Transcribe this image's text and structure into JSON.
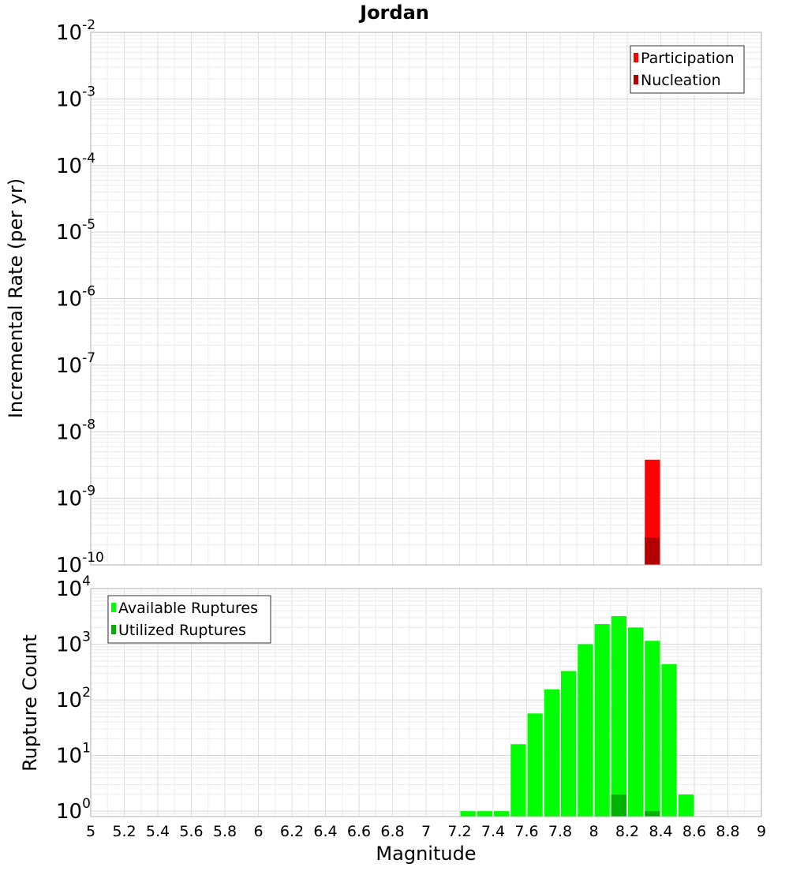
{
  "chart_data": [
    {
      "type": "bar",
      "title": "Jordan",
      "ylabel": "Incremental Rate (per yr)",
      "y_scale": "log",
      "ylim": [
        1e-10,
        0.01
      ],
      "xlim": [
        5,
        9
      ],
      "y_tick_exponents": [
        "-2",
        "-3",
        "-4",
        "-5",
        "-6",
        "-7",
        "-8",
        "-9",
        "-10"
      ],
      "bin_width": 0.1,
      "legend": {
        "position": "top-right",
        "entries": [
          "Participation",
          "Nucleation"
        ]
      },
      "colors": {
        "Participation": "#ff0000",
        "Nucleation": "#b20000"
      },
      "grid": true,
      "series": [
        {
          "name": "Participation",
          "x": [
            8.35
          ],
          "values": [
            3.8e-09
          ]
        },
        {
          "name": "Nucleation",
          "x": [
            8.35
          ],
          "values": [
            2.6e-10
          ]
        }
      ]
    },
    {
      "type": "bar",
      "ylabel": "Rupture Count",
      "xlabel": "Magnitude",
      "y_scale": "log",
      "ylim": [
        0.8,
        10000
      ],
      "xlim": [
        5,
        9
      ],
      "y_tick_exponents": [
        "4",
        "3",
        "2",
        "1",
        "0"
      ],
      "x_tick_labels": [
        "5",
        "5.2",
        "5.4",
        "5.6",
        "5.8",
        "6",
        "6.2",
        "6.4",
        "6.6",
        "6.8",
        "7",
        "7.2",
        "7.4",
        "7.6",
        "7.8",
        "8",
        "8.2",
        "8.4",
        "8.6",
        "8.8",
        "9"
      ],
      "bin_width": 0.1,
      "legend": {
        "position": "top-left",
        "entries": [
          "Available Ruptures",
          "Utilized Ruptures"
        ]
      },
      "colors": {
        "Available Ruptures": "#00ff00",
        "Utilized Ruptures": "#00b200"
      },
      "grid": true,
      "series": [
        {
          "name": "Available Ruptures",
          "x": [
            7.25,
            7.35,
            7.45,
            7.55,
            7.65,
            7.75,
            7.85,
            7.95,
            8.05,
            8.15,
            8.25,
            8.35,
            8.45,
            8.55
          ],
          "values": [
            1,
            1,
            1,
            16,
            57,
            155,
            330,
            1000,
            2300,
            3200,
            2000,
            1150,
            440,
            2
          ]
        },
        {
          "name": "Utilized Ruptures",
          "x": [
            8.15,
            8.35
          ],
          "values": [
            2,
            1
          ]
        }
      ]
    }
  ]
}
